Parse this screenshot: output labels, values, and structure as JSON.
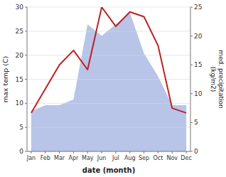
{
  "chart_data": {
    "type": "line",
    "xlabel": "date (month)",
    "ylabel": "max temp (C)",
    "y2label": "med. precipitation\n(kg/m2)",
    "categories": [
      "Jan",
      "Feb",
      "Mar",
      "Apr",
      "May",
      "Jun",
      "Jul",
      "Aug",
      "Sep",
      "Oct",
      "Nov",
      "Dec"
    ],
    "series": [
      {
        "type": "area",
        "axis": "y2",
        "color": "#b8c4e8",
        "values": [
          7,
          8,
          8,
          9,
          22,
          20,
          22,
          24,
          17,
          13,
          8,
          8
        ]
      },
      {
        "type": "line",
        "color": "#bb2222",
        "values": [
          8,
          13,
          18,
          21,
          17,
          30,
          26,
          29,
          28,
          22,
          9,
          8
        ]
      }
    ],
    "ylim": [
      0,
      30
    ],
    "yticks": [
      0,
      5,
      10,
      15,
      20,
      25,
      30
    ],
    "y2lim": [
      0,
      25
    ],
    "y2ticks": [
      0,
      5,
      10,
      15,
      20,
      25
    ],
    "grid": true
  }
}
